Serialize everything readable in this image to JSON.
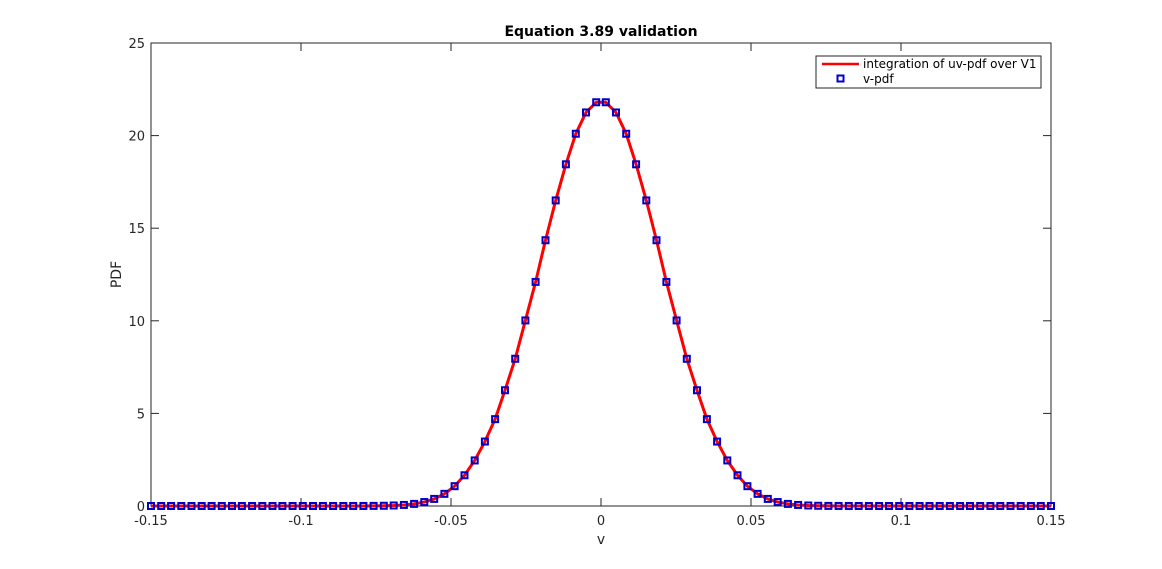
{
  "chart_data": {
    "type": "line",
    "title": "Equation 3.89  validation",
    "xlabel": "v",
    "ylabel": "PDF",
    "xlim": [
      -0.15,
      0.15
    ],
    "ylim": [
      0,
      25
    ],
    "xticks": [
      -0.15,
      -0.1,
      -0.05,
      0,
      0.05,
      0.1,
      0.15
    ],
    "xtick_labels": [
      "-0.15",
      "-0.1",
      "-0.05",
      "0",
      "0.05",
      "0.1",
      "0.15"
    ],
    "yticks": [
      0,
      5,
      10,
      15,
      20,
      25
    ],
    "ytick_labels": [
      "0",
      "5",
      "10",
      "15",
      "20",
      "25"
    ],
    "grid": false,
    "legend_position": "top-right",
    "x": [
      -0.15,
      -0.1466,
      -0.1433,
      -0.1399,
      -0.1365,
      -0.1331,
      -0.1298,
      -0.1264,
      -0.123,
      -0.1197,
      -0.1163,
      -0.1129,
      -0.1095,
      -0.1062,
      -0.1028,
      -0.0994,
      -0.096,
      -0.0927,
      -0.0893,
      -0.0859,
      -0.0826,
      -0.0792,
      -0.0758,
      -0.0724,
      -0.0691,
      -0.0657,
      -0.0623,
      -0.0589,
      -0.0556,
      -0.0522,
      -0.0488,
      -0.0455,
      -0.0421,
      -0.0387,
      -0.0353,
      -0.032,
      -0.0286,
      -0.0252,
      -0.0218,
      -0.0185,
      -0.0151,
      -0.0117,
      -0.0084,
      -0.005,
      -0.0016,
      0.0016,
      0.005,
      0.0084,
      0.0117,
      0.0151,
      0.0185,
      0.0218,
      0.0252,
      0.0286,
      0.032,
      0.0353,
      0.0387,
      0.0421,
      0.0455,
      0.0488,
      0.0522,
      0.0556,
      0.0589,
      0.0623,
      0.0657,
      0.0691,
      0.0724,
      0.0758,
      0.0792,
      0.0826,
      0.0859,
      0.0893,
      0.0927,
      0.096,
      0.0994,
      0.1028,
      0.1062,
      0.1095,
      0.1129,
      0.1163,
      0.1197,
      0.123,
      0.1264,
      0.1298,
      0.1331,
      0.1365,
      0.1399,
      0.1433,
      0.1466,
      0.15
    ],
    "series": [
      {
        "name": "integration of uv-pdf over V1",
        "color": "#ff0000",
        "style": "line",
        "values": [
          0,
          0,
          0,
          0,
          0,
          0,
          0,
          0,
          0,
          0,
          0,
          0,
          0,
          0,
          0,
          0,
          0,
          0,
          0,
          0,
          0.001,
          0.002,
          0.005,
          0.012,
          0.027,
          0.057,
          0.113,
          0.213,
          0.383,
          0.656,
          1.07,
          1.66,
          2.46,
          3.48,
          4.69,
          6.25,
          7.95,
          10.02,
          12.1,
          14.35,
          16.5,
          18.45,
          20.1,
          21.25,
          21.8,
          21.8,
          21.25,
          20.1,
          18.45,
          16.5,
          14.35,
          12.1,
          10.02,
          7.95,
          6.25,
          4.69,
          3.48,
          2.46,
          1.66,
          1.07,
          0.656,
          0.383,
          0.213,
          0.113,
          0.057,
          0.027,
          0.012,
          0.005,
          0.002,
          0.001,
          0,
          0,
          0,
          0,
          0,
          0,
          0,
          0,
          0,
          0,
          0,
          0,
          0,
          0,
          0,
          0,
          0,
          0,
          0,
          0
        ]
      },
      {
        "name": "v-pdf",
        "color": "#0000cc",
        "style": "square-marker",
        "values": [
          0,
          0,
          0,
          0,
          0,
          0,
          0,
          0,
          0,
          0,
          0,
          0,
          0,
          0,
          0,
          0,
          0,
          0,
          0,
          0,
          0.001,
          0.002,
          0.005,
          0.012,
          0.027,
          0.057,
          0.113,
          0.213,
          0.383,
          0.656,
          1.07,
          1.66,
          2.46,
          3.48,
          4.69,
          6.25,
          7.95,
          10.02,
          12.1,
          14.35,
          16.5,
          18.45,
          20.1,
          21.25,
          21.8,
          21.8,
          21.25,
          20.1,
          18.45,
          16.5,
          14.35,
          12.1,
          10.02,
          7.95,
          6.25,
          4.69,
          3.48,
          2.46,
          1.66,
          1.07,
          0.656,
          0.383,
          0.213,
          0.113,
          0.057,
          0.027,
          0.012,
          0.005,
          0.002,
          0.001,
          0,
          0,
          0,
          0,
          0,
          0,
          0,
          0,
          0,
          0,
          0,
          0,
          0,
          0,
          0,
          0,
          0,
          0,
          0,
          0
        ]
      }
    ]
  }
}
